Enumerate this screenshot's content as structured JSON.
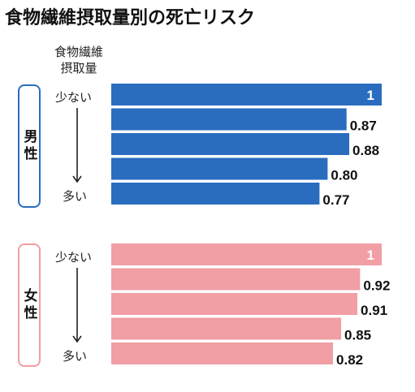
{
  "title": "食物繊維摂取量別の死亡リスク",
  "axis_caption": [
    "食物繊維",
    "摂取量"
  ],
  "chart_data": [
    {
      "type": "bar",
      "group_label": "男性",
      "categories": [
        "少ない",
        "",
        "",
        "",
        "多い"
      ],
      "values": [
        1,
        0.87,
        0.88,
        0.8,
        0.77
      ],
      "value_labels": [
        "1",
        "0.87",
        "0.88",
        "0.80",
        "0.77"
      ],
      "end_labels": {
        "top": "少ない",
        "bottom": "多い"
      },
      "color": "#2a6dbf",
      "frame_color": "#2a6dbf"
    },
    {
      "type": "bar",
      "group_label": "女性",
      "categories": [
        "少ない",
        "",
        "",
        "",
        "多い"
      ],
      "values": [
        1,
        0.92,
        0.91,
        0.85,
        0.82
      ],
      "value_labels": [
        "1",
        "0.92",
        "0.91",
        "0.85",
        "0.82"
      ],
      "end_labels": {
        "top": "少ない",
        "bottom": "多い"
      },
      "color": "#f19ea4",
      "frame_color": "#f19ea4"
    }
  ]
}
